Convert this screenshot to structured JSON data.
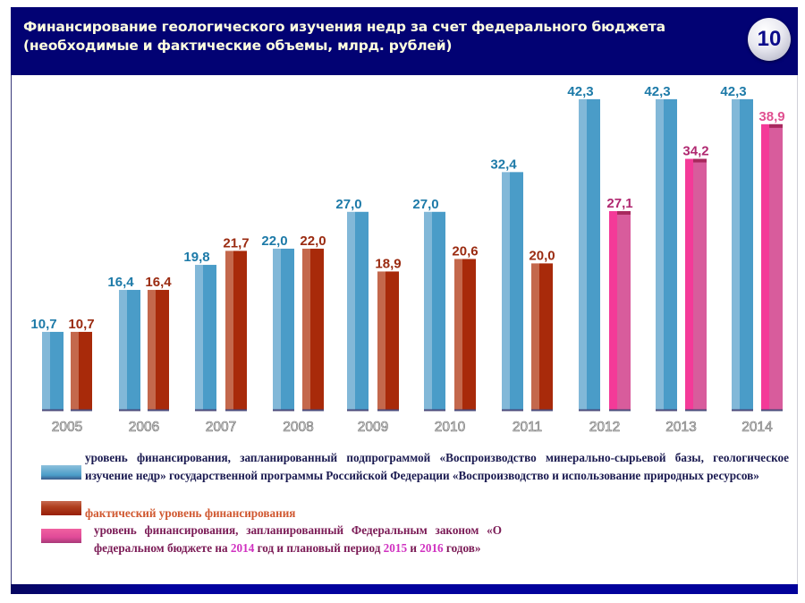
{
  "header": {
    "title_line1": "Финансирование геологического изучения недр за счет федерального бюджета",
    "title_line2": "(необходимые и фактические объемы, млрд. рублей)",
    "slide_number": "10"
  },
  "colors": {
    "header_bg": "#020273",
    "planned": "#4a9cc8",
    "actual": "#a82a0a",
    "law": "#e8449a",
    "planned_label": "#1d7aa8",
    "actual_label": "#9a2a10",
    "law_label": "#b02870",
    "law_label_2014": "#e05090"
  },
  "chart_data": {
    "type": "bar",
    "title": "Финансирование геологического изучения недр за счет федерального бюджета (необходимые и фактические объемы, млрд. рублей)",
    "xlabel": "",
    "ylabel": "",
    "ylim": [
      0,
      45
    ],
    "grid": false,
    "categories": [
      "2005",
      "2006",
      "2007",
      "2008",
      "2009",
      "2010",
      "2011",
      "2012",
      "2013",
      "2014"
    ],
    "series": [
      {
        "name": "planned",
        "values": [
          10.7,
          16.4,
          19.8,
          22.0,
          27.0,
          27.0,
          32.4,
          42.3,
          42.3,
          42.3
        ],
        "labels": [
          "10,7",
          "16,4",
          "19,8",
          "22,0",
          "27,0",
          "27,0",
          "32,4",
          "42,3",
          "42,3",
          "42,3"
        ]
      },
      {
        "name": "actual",
        "values": [
          10.7,
          16.4,
          21.7,
          22.0,
          18.9,
          20.6,
          20.0,
          null,
          null,
          null
        ],
        "labels": [
          "10,7",
          "16,4",
          "21,7",
          "22,0",
          "18,9",
          "20,6",
          "20,0",
          "",
          "",
          ""
        ]
      },
      {
        "name": "federal_law",
        "values": [
          null,
          null,
          null,
          null,
          null,
          null,
          null,
          27.1,
          34.2,
          38.9
        ],
        "labels": [
          "",
          "",
          "",
          "",
          "",
          "",
          "",
          "27,1",
          "34,2",
          "38,9"
        ]
      }
    ],
    "legend_placement": "bottom"
  },
  "legend": {
    "planned_text": "уровень финансирования, запланированный подпрограммой «Воспроизводство минерально-сырьевой базы, геологическое изучение недр» государственной программы Российской Федерации «Воспроизводство и использование природных ресурсов»",
    "actual_text": "фактический уровень финансирования",
    "law_text_part1": "уровень финансирования, запланированный Федеральным законом «О федеральном бюджете на ",
    "law_year1": "2014",
    "law_text_part2": " год и плановый период ",
    "law_year2": "2015",
    "law_text_part3": "  и ",
    "law_year3": "2016",
    "law_text_part4": " годов»"
  }
}
